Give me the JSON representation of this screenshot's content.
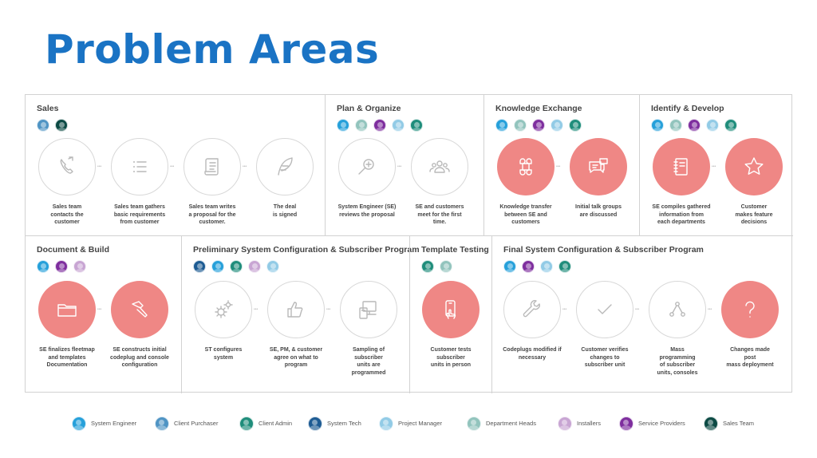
{
  "page_title": "Problem Areas",
  "roles": {
    "system_engineer": "#26a0da",
    "client_purchaser": "#4f94c4",
    "client_admin": "#1f8d7b",
    "system_tech": "#1d5b93",
    "project_manager": "#92cbe6",
    "department_heads": "#92c4bd",
    "installers": "#c8a5d3",
    "service_providers": "#7e2e9e",
    "sales_team": "#0c4a44"
  },
  "sections": [
    {
      "title": "Sales",
      "avatars": [
        "client_purchaser",
        "sales_team"
      ],
      "steps": [
        {
          "label": "Sales team\ncontacts the\ncustomer",
          "icon": "phone-icon",
          "style": "outline"
        },
        {
          "label": "Sales team gathers\nbasic requirements\nfrom customer",
          "icon": "list-icon",
          "style": "outline"
        },
        {
          "label": "Sales team writes\na proposal for the\ncustomer.",
          "icon": "scroll-icon",
          "style": "outline"
        },
        {
          "label": "The deal\nis signed",
          "icon": "quill-icon",
          "style": "outline"
        }
      ]
    },
    {
      "title": "Plan & Organize",
      "avatars": [
        "system_engineer",
        "department_heads",
        "service_providers",
        "project_manager",
        "client_admin"
      ],
      "steps": [
        {
          "label": "System Engineer (SE)\nreviews the proposal",
          "icon": "magnifier-icon",
          "style": "outline"
        },
        {
          "label": "SE and customers\nmeet for the first\ntime.",
          "icon": "people-icon",
          "style": "outline"
        }
      ]
    },
    {
      "title": "Knowledge Exchange",
      "avatars": [
        "system_engineer",
        "department_heads",
        "service_providers",
        "project_manager",
        "client_admin"
      ],
      "steps": [
        {
          "label": "Knowledge transfer\nbetween SE and\ncustomers",
          "icon": "command-icon",
          "style": "filled"
        },
        {
          "label": "Initial talk groups\nare discussed",
          "icon": "chat-icon",
          "style": "filled"
        }
      ]
    },
    {
      "title": "Identify & Develop",
      "avatars": [
        "system_engineer",
        "department_heads",
        "service_providers",
        "project_manager",
        "client_admin"
      ],
      "steps": [
        {
          "label": "SE compiles gathered\ninformation from\neach departments",
          "icon": "notebook-icon",
          "style": "filled"
        },
        {
          "label": "Customer\nmakes feature\ndecisions",
          "icon": "star-icon",
          "style": "filled"
        }
      ]
    },
    {
      "title": "Document & Build",
      "avatars": [
        "system_engineer",
        "service_providers",
        "installers"
      ],
      "steps": [
        {
          "label": "SE finalizes fleetmap\nand templates\nDocumentation",
          "icon": "folder-icon",
          "style": "filled"
        },
        {
          "label": "SE constructs initial\ncodeplug and console\nconfiguration",
          "icon": "hammer-icon",
          "style": "filled"
        }
      ]
    },
    {
      "title": "Preliminary System Configuration & Subscriber Program",
      "avatars": [
        "system_tech",
        "system_engineer",
        "client_admin",
        "installers",
        "project_manager"
      ],
      "steps": [
        {
          "label": "ST configures\nsystem",
          "icon": "gears-icon",
          "style": "outline"
        },
        {
          "label": "SE, PM, & customer\nagree on what to\nprogram",
          "icon": "thumbs-up-icon",
          "style": "outline"
        },
        {
          "label": "Sampling of\nsubscriber\nunits are\nprogrammed",
          "icon": "devices-icon",
          "style": "outline"
        }
      ]
    },
    {
      "title": "Template Testing",
      "avatars": [
        "client_admin",
        "department_heads"
      ],
      "steps": [
        {
          "label": "Customer tests\nsubscriber\nunits in person",
          "icon": "phone-touch-icon",
          "style": "filled"
        }
      ]
    },
    {
      "title": "Final System Configuration & Subscriber Program",
      "avatars": [
        "system_engineer",
        "service_providers",
        "project_manager",
        "client_admin"
      ],
      "steps": [
        {
          "label": "Codeplugs modified if\nnecessary",
          "icon": "wrench-icon",
          "style": "outline"
        },
        {
          "label": "Customer verifies\nchanges to\nsubscriber unit",
          "icon": "check-icon",
          "style": "outline"
        },
        {
          "label": "Mass\nprogramming\nof subscriber\nunits, consoles",
          "icon": "share-icon",
          "style": "outline"
        },
        {
          "label": "Changes made\npost\nmass deployment",
          "icon": "question-icon",
          "style": "filled"
        }
      ]
    }
  ],
  "legend": [
    {
      "role": "system_engineer",
      "label": "System Engineer"
    },
    {
      "role": "client_purchaser",
      "label": "Client Purchaser"
    },
    {
      "role": "client_admin",
      "label": "Client Admin"
    },
    {
      "role": "system_tech",
      "label": "System Tech"
    },
    {
      "role": "project_manager",
      "label": "Project Manager"
    },
    {
      "role": "department_heads",
      "label": "Department Heads"
    },
    {
      "role": "installers",
      "label": "Installers"
    },
    {
      "role": "service_providers",
      "label": "Service Providers"
    },
    {
      "role": "sales_team",
      "label": "Sales Team"
    }
  ]
}
